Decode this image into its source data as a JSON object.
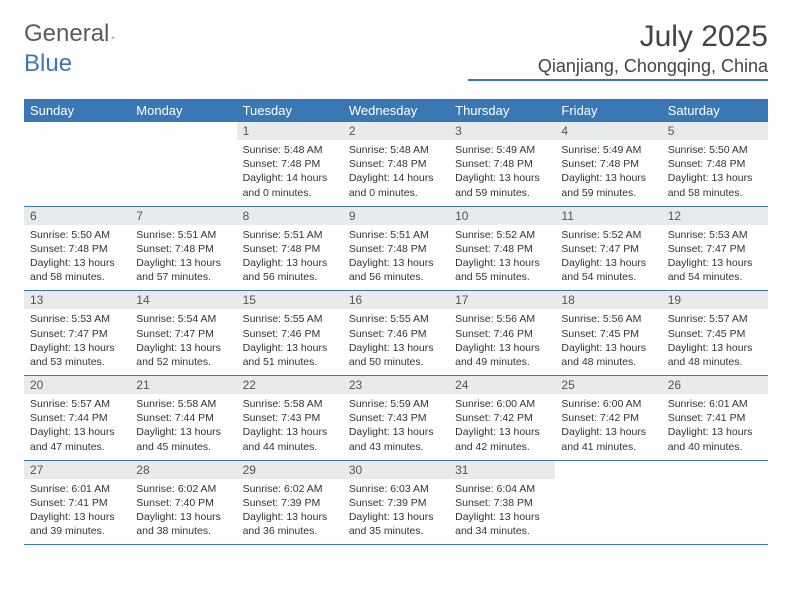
{
  "logo": {
    "text1": "General",
    "text2": "Blue",
    "text1_color": "#5a5a5a",
    "text2_color": "#3a78b5"
  },
  "title": "July 2025",
  "location": "Qianjiang, Chongqing, China",
  "theme": {
    "header_bg": "#3a78b5",
    "header_fg": "#ffffff",
    "daynum_bg": "#e8eaec",
    "rule": "#3a78b5"
  },
  "weekdays": [
    "Sunday",
    "Monday",
    "Tuesday",
    "Wednesday",
    "Thursday",
    "Friday",
    "Saturday"
  ],
  "weeks": [
    [
      {
        "n": "",
        "sr": "",
        "ss": "",
        "dl": ""
      },
      {
        "n": "",
        "sr": "",
        "ss": "",
        "dl": ""
      },
      {
        "n": "1",
        "sr": "Sunrise: 5:48 AM",
        "ss": "Sunset: 7:48 PM",
        "dl": "Daylight: 14 hours and 0 minutes."
      },
      {
        "n": "2",
        "sr": "Sunrise: 5:48 AM",
        "ss": "Sunset: 7:48 PM",
        "dl": "Daylight: 14 hours and 0 minutes."
      },
      {
        "n": "3",
        "sr": "Sunrise: 5:49 AM",
        "ss": "Sunset: 7:48 PM",
        "dl": "Daylight: 13 hours and 59 minutes."
      },
      {
        "n": "4",
        "sr": "Sunrise: 5:49 AM",
        "ss": "Sunset: 7:48 PM",
        "dl": "Daylight: 13 hours and 59 minutes."
      },
      {
        "n": "5",
        "sr": "Sunrise: 5:50 AM",
        "ss": "Sunset: 7:48 PM",
        "dl": "Daylight: 13 hours and 58 minutes."
      }
    ],
    [
      {
        "n": "6",
        "sr": "Sunrise: 5:50 AM",
        "ss": "Sunset: 7:48 PM",
        "dl": "Daylight: 13 hours and 58 minutes."
      },
      {
        "n": "7",
        "sr": "Sunrise: 5:51 AM",
        "ss": "Sunset: 7:48 PM",
        "dl": "Daylight: 13 hours and 57 minutes."
      },
      {
        "n": "8",
        "sr": "Sunrise: 5:51 AM",
        "ss": "Sunset: 7:48 PM",
        "dl": "Daylight: 13 hours and 56 minutes."
      },
      {
        "n": "9",
        "sr": "Sunrise: 5:51 AM",
        "ss": "Sunset: 7:48 PM",
        "dl": "Daylight: 13 hours and 56 minutes."
      },
      {
        "n": "10",
        "sr": "Sunrise: 5:52 AM",
        "ss": "Sunset: 7:48 PM",
        "dl": "Daylight: 13 hours and 55 minutes."
      },
      {
        "n": "11",
        "sr": "Sunrise: 5:52 AM",
        "ss": "Sunset: 7:47 PM",
        "dl": "Daylight: 13 hours and 54 minutes."
      },
      {
        "n": "12",
        "sr": "Sunrise: 5:53 AM",
        "ss": "Sunset: 7:47 PM",
        "dl": "Daylight: 13 hours and 54 minutes."
      }
    ],
    [
      {
        "n": "13",
        "sr": "Sunrise: 5:53 AM",
        "ss": "Sunset: 7:47 PM",
        "dl": "Daylight: 13 hours and 53 minutes."
      },
      {
        "n": "14",
        "sr": "Sunrise: 5:54 AM",
        "ss": "Sunset: 7:47 PM",
        "dl": "Daylight: 13 hours and 52 minutes."
      },
      {
        "n": "15",
        "sr": "Sunrise: 5:55 AM",
        "ss": "Sunset: 7:46 PM",
        "dl": "Daylight: 13 hours and 51 minutes."
      },
      {
        "n": "16",
        "sr": "Sunrise: 5:55 AM",
        "ss": "Sunset: 7:46 PM",
        "dl": "Daylight: 13 hours and 50 minutes."
      },
      {
        "n": "17",
        "sr": "Sunrise: 5:56 AM",
        "ss": "Sunset: 7:46 PM",
        "dl": "Daylight: 13 hours and 49 minutes."
      },
      {
        "n": "18",
        "sr": "Sunrise: 5:56 AM",
        "ss": "Sunset: 7:45 PM",
        "dl": "Daylight: 13 hours and 48 minutes."
      },
      {
        "n": "19",
        "sr": "Sunrise: 5:57 AM",
        "ss": "Sunset: 7:45 PM",
        "dl": "Daylight: 13 hours and 48 minutes."
      }
    ],
    [
      {
        "n": "20",
        "sr": "Sunrise: 5:57 AM",
        "ss": "Sunset: 7:44 PM",
        "dl": "Daylight: 13 hours and 47 minutes."
      },
      {
        "n": "21",
        "sr": "Sunrise: 5:58 AM",
        "ss": "Sunset: 7:44 PM",
        "dl": "Daylight: 13 hours and 45 minutes."
      },
      {
        "n": "22",
        "sr": "Sunrise: 5:58 AM",
        "ss": "Sunset: 7:43 PM",
        "dl": "Daylight: 13 hours and 44 minutes."
      },
      {
        "n": "23",
        "sr": "Sunrise: 5:59 AM",
        "ss": "Sunset: 7:43 PM",
        "dl": "Daylight: 13 hours and 43 minutes."
      },
      {
        "n": "24",
        "sr": "Sunrise: 6:00 AM",
        "ss": "Sunset: 7:42 PM",
        "dl": "Daylight: 13 hours and 42 minutes."
      },
      {
        "n": "25",
        "sr": "Sunrise: 6:00 AM",
        "ss": "Sunset: 7:42 PM",
        "dl": "Daylight: 13 hours and 41 minutes."
      },
      {
        "n": "26",
        "sr": "Sunrise: 6:01 AM",
        "ss": "Sunset: 7:41 PM",
        "dl": "Daylight: 13 hours and 40 minutes."
      }
    ],
    [
      {
        "n": "27",
        "sr": "Sunrise: 6:01 AM",
        "ss": "Sunset: 7:41 PM",
        "dl": "Daylight: 13 hours and 39 minutes."
      },
      {
        "n": "28",
        "sr": "Sunrise: 6:02 AM",
        "ss": "Sunset: 7:40 PM",
        "dl": "Daylight: 13 hours and 38 minutes."
      },
      {
        "n": "29",
        "sr": "Sunrise: 6:02 AM",
        "ss": "Sunset: 7:39 PM",
        "dl": "Daylight: 13 hours and 36 minutes."
      },
      {
        "n": "30",
        "sr": "Sunrise: 6:03 AM",
        "ss": "Sunset: 7:39 PM",
        "dl": "Daylight: 13 hours and 35 minutes."
      },
      {
        "n": "31",
        "sr": "Sunrise: 6:04 AM",
        "ss": "Sunset: 7:38 PM",
        "dl": "Daylight: 13 hours and 34 minutes."
      },
      {
        "n": "",
        "sr": "",
        "ss": "",
        "dl": ""
      },
      {
        "n": "",
        "sr": "",
        "ss": "",
        "dl": ""
      }
    ]
  ]
}
